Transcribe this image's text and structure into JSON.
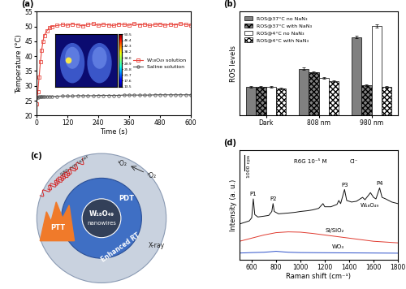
{
  "chart_data": [
    {
      "panel": "(a)",
      "type": "line",
      "x_label": "Time (s)",
      "y_label": "Temperature (°C)",
      "x": [
        0,
        5,
        10,
        15,
        20,
        25,
        30,
        40,
        50,
        60,
        80,
        100,
        120,
        140,
        160,
        180,
        200,
        220,
        240,
        260,
        280,
        300,
        320,
        340,
        360,
        380,
        400,
        420,
        440,
        460,
        480,
        500,
        520,
        540,
        560,
        580,
        600
      ],
      "xlim": [
        0,
        600
      ],
      "xticks": [
        0,
        120,
        240,
        360,
        480,
        600
      ],
      "ylim": [
        20,
        55
      ],
      "yticks": [
        20,
        25,
        30,
        35,
        40,
        45,
        50,
        55
      ],
      "legend": "center right",
      "series": [
        {
          "name": "W₁₈O₄₉ solution",
          "color": "#e8473f",
          "marker": "square",
          "line_style": "solid",
          "values": [
            24.0,
            28.0,
            33.0,
            38.0,
            42.0,
            45.0,
            47.0,
            48.5,
            49.5,
            50.0,
            50.3,
            50.6,
            50.4,
            50.8,
            50.5,
            50.2,
            50.6,
            50.9,
            50.4,
            50.7,
            50.5,
            50.3,
            50.8,
            50.6,
            50.4,
            50.9,
            50.5,
            50.7,
            50.3,
            50.6,
            50.8,
            50.4,
            50.7,
            50.5,
            50.9,
            50.6,
            50.4
          ]
        },
        {
          "name": "Saline solution",
          "color": "#555555",
          "marker": "circle",
          "line_style": "solid",
          "values": [
            26.2,
            26.2,
            26.3,
            26.3,
            26.3,
            26.4,
            26.4,
            26.4,
            26.5,
            26.5,
            26.5,
            26.6,
            26.6,
            26.6,
            26.7,
            26.7,
            26.7,
            26.7,
            26.8,
            26.8,
            26.8,
            26.8,
            26.8,
            26.9,
            26.9,
            26.9,
            26.9,
            26.9,
            26.9,
            27.0,
            27.0,
            27.0,
            27.0,
            27.0,
            27.0,
            27.0,
            27.0
          ]
        }
      ],
      "inset_colorbar": {
        "range": [
          13.5,
          50.5
        ],
        "ticks": [
          50.5,
          46.4,
          42.3,
          38.2,
          34.0,
          29.9,
          25.8,
          21.7,
          17.6,
          13.5
        ]
      }
    },
    {
      "panel": "(b)",
      "type": "bar",
      "y_label": "ROS levels",
      "categories": [
        "Dark",
        "808 nm",
        "980 nm"
      ],
      "ylim": [
        0,
        3.6
      ],
      "tick_labels": "x",
      "legend": "upper left",
      "series": [
        {
          "name": "ROS@37°C no NaN₃",
          "color": "#808080",
          "values": [
            1.0,
            1.62,
            2.72
          ],
          "errors": [
            0.03,
            0.04,
            0.05
          ]
        },
        {
          "name": "ROS@37°C with NaN₃",
          "color": "#808080",
          "values": [
            1.0,
            1.5,
            1.05
          ],
          "errors": [
            0.03,
            0.04,
            0.03
          ]
        },
        {
          "name": "ROS@4°C no NaN₃",
          "color": "#ffffff",
          "values": [
            1.0,
            1.3,
            3.1
          ],
          "errors": [
            0.03,
            0.03,
            0.05
          ]
        },
        {
          "name": "ROS@4°C with NaN₃",
          "color": "#ffffff",
          "values": [
            0.95,
            1.2,
            1.0
          ],
          "errors": [
            0.03,
            0.03,
            0.03
          ]
        }
      ]
    },
    {
      "panel": "(d)",
      "type": "line",
      "x_label": "Raman shift (cm⁻¹)",
      "y_label": "Intensity (a. u.)",
      "xlim": [
        500,
        1800
      ],
      "xticks": [
        600,
        800,
        1000,
        1200,
        1400,
        1600,
        1800
      ],
      "ylim": [
        0,
        7000
      ],
      "tick_labels": "x",
      "scale_bar": {
        "value": 1000,
        "label": "1000 cps"
      },
      "inset_text": [
        "R6G 10⁻⁵ M",
        "Cl⁻"
      ],
      "peaks": [
        {
          "label": "P1",
          "x": 613
        },
        {
          "label": "P2",
          "x": 775
        },
        {
          "label": "P3",
          "x": 1362
        },
        {
          "label": "P4",
          "x": 1650
        }
      ],
      "series": [
        {
          "name": "W₁₈O₄₉",
          "color": "#111111",
          "line_style": "solid",
          "x": [
            500,
            540,
            580,
            600,
            613,
            625,
            650,
            700,
            740,
            765,
            775,
            785,
            820,
            900,
            960,
            1000,
            1060,
            1100,
            1150,
            1185,
            1200,
            1250,
            1300,
            1315,
            1330,
            1362,
            1380,
            1420,
            1460,
            1510,
            1530,
            1575,
            1600,
            1620,
            1650,
            1670,
            1700,
            1750,
            1800
          ],
          "values": [
            2300,
            2400,
            2500,
            2700,
            3900,
            2900,
            2750,
            2800,
            2850,
            3100,
            3600,
            3100,
            2950,
            3000,
            3050,
            3100,
            3150,
            3200,
            3300,
            3600,
            3400,
            3400,
            3550,
            3800,
            3600,
            4500,
            3800,
            3700,
            3750,
            4000,
            3850,
            4300,
            4000,
            3900,
            4600,
            4000,
            3900,
            3700,
            3600
          ]
        },
        {
          "name": "Si/SiO₂",
          "color": "#e03a2f",
          "line_style": "solid",
          "x": [
            500,
            600,
            700,
            800,
            900,
            1000,
            1100,
            1200,
            1300,
            1400,
            1500,
            1600,
            1700,
            1800
          ],
          "values": [
            1200,
            1400,
            1600,
            1750,
            1800,
            1780,
            1700,
            1600,
            1500,
            1400,
            1300,
            1200,
            1150,
            1100
          ]
        },
        {
          "name": "WO₃",
          "color": "#2b4fc9",
          "line_style": "solid",
          "x": [
            500,
            600,
            700,
            800,
            900,
            1000,
            1200,
            1400,
            1600,
            1800
          ],
          "values": [
            450,
            480,
            500,
            560,
            500,
            480,
            470,
            460,
            450,
            440
          ]
        }
      ]
    }
  ],
  "diagram": {
    "panel": "(c)",
    "center": [
      "W₁₈O₄₉",
      "nanowires"
    ],
    "laser": "980 nm laser",
    "labels": [
      "PDT",
      "PTT",
      "Enhanced RT",
      "X-ray"
    ],
    "oxygen": [
      "¹O₂",
      "³O₂"
    ]
  }
}
